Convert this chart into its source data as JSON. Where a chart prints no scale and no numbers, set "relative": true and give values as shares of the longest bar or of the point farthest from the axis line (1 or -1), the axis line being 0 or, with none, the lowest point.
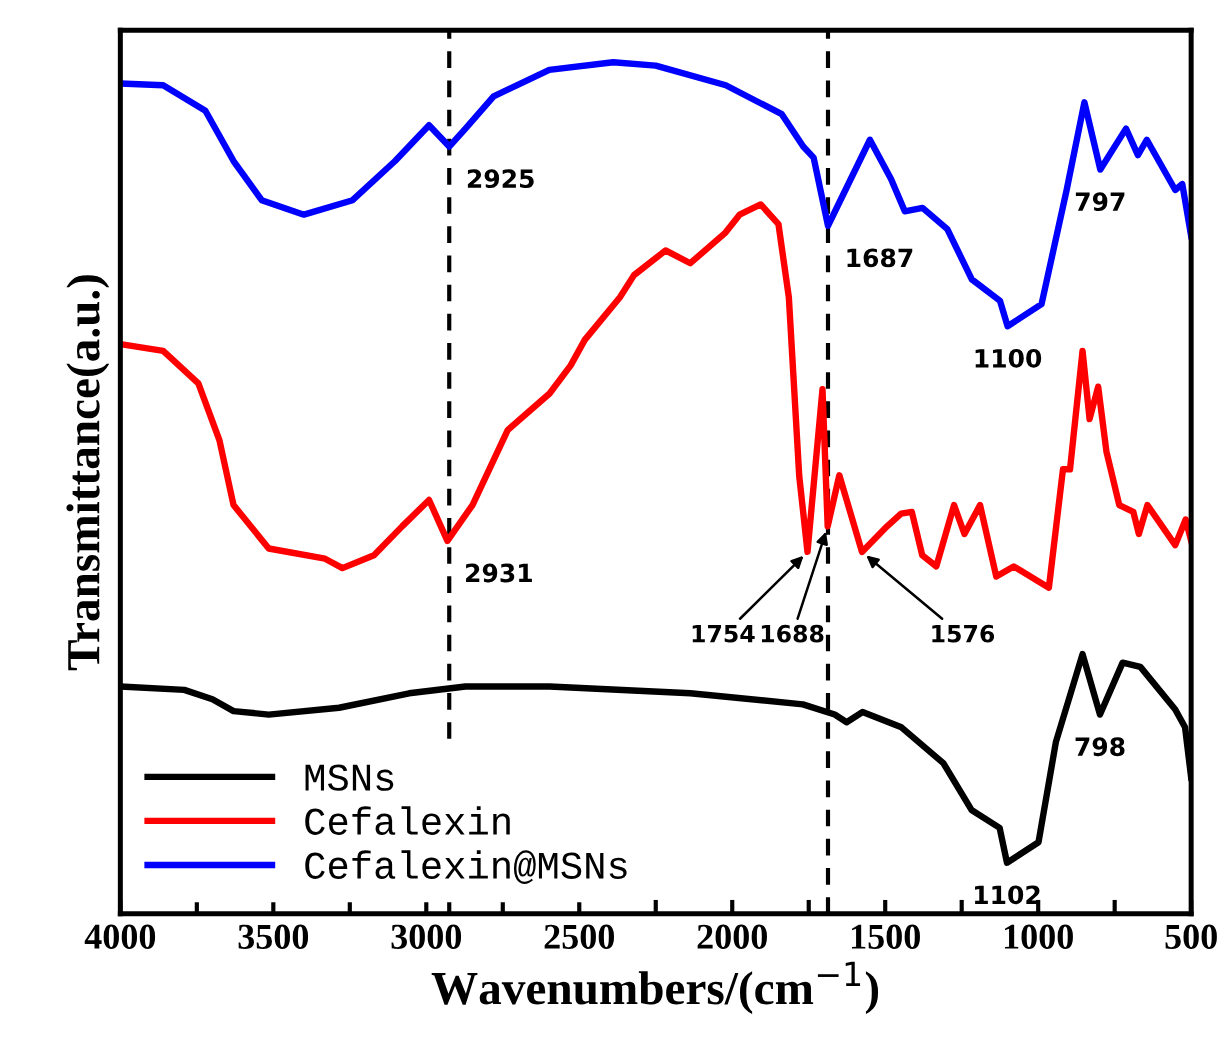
{
  "chart_data": {
    "type": "line",
    "relative": true,
    "xlabel": "Wavenumbers/(cm$^{−1}$)",
    "ylabel": "Transmittance(a.u.)",
    "xlim": [
      4000,
      500
    ],
    "xticks": [
      4000,
      {
        "value": 3750,
        "label": null
      },
      3500,
      {
        "value": 3250,
        "label": null
      },
      3000,
      {
        "value": 2750,
        "label": null
      },
      2500,
      {
        "value": 2250,
        "label": null
      },
      2000,
      {
        "value": 1750,
        "label": null
      },
      1500,
      {
        "value": 1250,
        "label": null
      },
      1000,
      {
        "value": 750,
        "label": null
      },
      500
    ],
    "tick_labels": "x",
    "legend": "bottom left",
    "grid": false,
    "line_style": "solid",
    "marker": "none",
    "series": [
      {
        "name": "MSNs",
        "color": "#000000",
        "x": [
          4000,
          3791,
          3699,
          3630,
          3515,
          3285,
          3056,
          2872,
          2597,
          2137,
          1769,
          1665,
          1626,
          1574,
          1447,
          1310,
          1218,
          1126,
          1102,
          999,
          942,
          855,
          798,
          724,
          666,
          552,
          520,
          500
        ],
        "values": [
          0.267,
          0.263,
          0.252,
          0.238,
          0.234,
          0.242,
          0.259,
          0.267,
          0.267,
          0.259,
          0.246,
          0.234,
          0.225,
          0.237,
          0.219,
          0.177,
          0.122,
          0.101,
          0.06,
          0.084,
          0.202,
          0.305,
          0.234,
          0.295,
          0.29,
          0.24,
          0.219,
          0.16
        ]
      },
      {
        "name": "Cefalexin",
        "color": "#ff0000",
        "x": [
          4000,
          3860,
          3745,
          3676,
          3630,
          3515,
          3331,
          3274,
          3171,
          3079,
          2991,
          2931,
          2849,
          2734,
          2597,
          2528,
          2482,
          2367,
          2321,
          2218,
          2137,
          2022,
          1976,
          1907,
          1849,
          1815,
          1781,
          1754,
          1705,
          1688,
          1650,
          1576,
          1494,
          1448,
          1413,
          1379,
          1333,
          1275,
          1241,
          1190,
          1137,
          1080,
          965,
          919,
          896,
          855,
          832,
          804,
          777,
          735,
          689,
          671,
          643,
          552,
          518,
          500
        ],
        "values": [
          0.669,
          0.661,
          0.623,
          0.556,
          0.48,
          0.429,
          0.417,
          0.406,
          0.421,
          0.455,
          0.486,
          0.438,
          0.48,
          0.568,
          0.611,
          0.644,
          0.674,
          0.724,
          0.75,
          0.779,
          0.764,
          0.8,
          0.821,
          0.833,
          0.81,
          0.724,
          0.514,
          0.425,
          0.616,
          0.455,
          0.515,
          0.425,
          0.455,
          0.47,
          0.472,
          0.421,
          0.408,
          0.48,
          0.446,
          0.48,
          0.396,
          0.408,
          0.383,
          0.522,
          0.522,
          0.661,
          0.581,
          0.619,
          0.543,
          0.48,
          0.472,
          0.446,
          0.48,
          0.433,
          0.463,
          0.438
        ]
      },
      {
        "name": "Cefalexin@MSNs",
        "color": "#0000ff",
        "x": [
          4000,
          3860,
          3722,
          3630,
          3538,
          3400,
          3241,
          3102,
          2991,
          2925,
          2872,
          2780,
          2598,
          2389,
          2250,
          2021,
          1838,
          1768,
          1734,
          1687,
          1550,
          1481,
          1436,
          1378,
          1297,
          1217,
          1125,
          1100,
          989,
          907,
          849,
          797,
          713,
          674,
          645,
          552,
          529,
          500
        ],
        "values": [
          0.975,
          0.973,
          0.943,
          0.884,
          0.838,
          0.821,
          0.838,
          0.884,
          0.926,
          0.901,
          0.922,
          0.96,
          0.991,
          1.0,
          0.996,
          0.973,
          0.939,
          0.901,
          0.888,
          0.808,
          0.909,
          0.863,
          0.825,
          0.829,
          0.804,
          0.745,
          0.72,
          0.69,
          0.716,
          0.85,
          0.953,
          0.874,
          0.922,
          0.891,
          0.909,
          0.85,
          0.857,
          0.796
        ]
      }
    ],
    "ref_lines": [
      {
        "axis": "x",
        "value": 2925,
        "color": "#000000",
        "line_style": "dashed"
      },
      {
        "axis": "x",
        "value": 1687,
        "color": "#000000",
        "line_style": "dashed"
      }
    ],
    "annotations": [
      {
        "text": "2925",
        "x": 2925,
        "y": 0.901
      },
      {
        "text": "1687",
        "x": 1687,
        "y": 0.808
      },
      {
        "text": "797",
        "x": 797,
        "y": 0.874
      },
      {
        "text": "1100",
        "x": 1100,
        "y": 0.69
      },
      {
        "text": "2931",
        "x": 2931,
        "y": 0.438
      },
      {
        "text": "1754",
        "x": 1754,
        "y": 0.425
      },
      {
        "text": "1688",
        "x": 1688,
        "y": 0.455
      },
      {
        "text": "1576",
        "x": 1576,
        "y": 0.425
      },
      {
        "text": "1102",
        "x": 1102,
        "y": 0.06
      },
      {
        "text": "798",
        "x": 798,
        "y": 0.234
      }
    ]
  }
}
